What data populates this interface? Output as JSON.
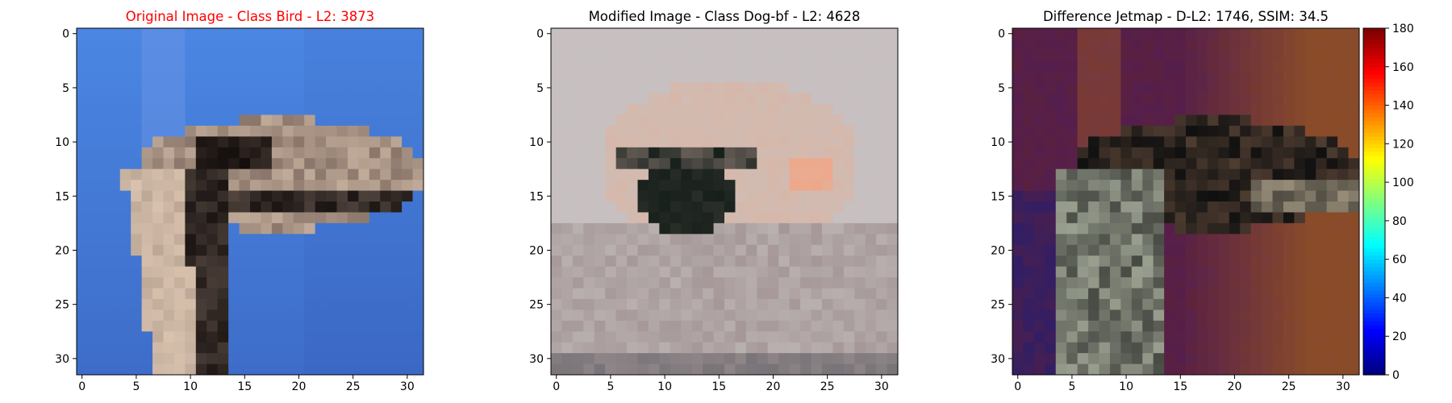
{
  "colors": {
    "original_title": "#ff0000",
    "default_title": "#000000",
    "axis": "#000000"
  },
  "chart_data": [
    {
      "type": "heatmap",
      "title": "Original Image - Class Bird - L2: 3873",
      "title_color": "#ff0000",
      "xlim": [
        -0.5,
        31.5
      ],
      "ylim": [
        31.5,
        -0.5
      ],
      "x_ticks": [
        0,
        5,
        10,
        15,
        20,
        25,
        30
      ],
      "y_ticks": [
        0,
        5,
        10,
        15,
        20,
        25,
        30
      ],
      "grid": false,
      "image_description": "32x32 pixelated photo: ostrich head and neck facing right on a blue background",
      "palette": {
        "background": "#4a86e2",
        "background_dark": "#3a66c2",
        "neck_light": "#d8c2ae",
        "neck_shadow": "#1a1412",
        "head_feathers": "#8a766a",
        "eye": "#140e0c"
      }
    },
    {
      "type": "heatmap",
      "title": "Modified Image - Class Dog-bf - L2: 4628",
      "title_color": "#000000",
      "xlim": [
        -0.5,
        31.5
      ],
      "ylim": [
        31.5,
        -0.5
      ],
      "x_ticks": [
        0,
        5,
        10,
        15,
        20,
        25,
        30
      ],
      "y_ticks": [
        0,
        5,
        10,
        15,
        20,
        25,
        30
      ],
      "grid": false,
      "image_description": "32x32 pixelated adversarial image: muted pinkish-gray face shape with a dark central patch",
      "palette": {
        "background": "#c6c0c0",
        "face": "#d6b8aa",
        "dark_patch": "#18201c",
        "highlight": "#eea88a",
        "lower": "#a69898"
      }
    },
    {
      "type": "heatmap",
      "title": "Difference Jetmap - D-L2: 1746, SSIM: 34.5",
      "title_color": "#000000",
      "xlim": [
        -0.5,
        31.5
      ],
      "ylim": [
        31.5,
        -0.5
      ],
      "x_ticks": [
        0,
        5,
        10,
        15,
        20,
        25,
        30
      ],
      "y_ticks": [
        0,
        5,
        10,
        15,
        20,
        25,
        30
      ],
      "grid": false,
      "image_description": "32x32 jet-colormap difference overlay: ostrich silhouette over purple-to-orange tinted background",
      "palette": {
        "background": "#5a2040",
        "right_orange": "#9a5a20",
        "neck": "#9aa090",
        "dark": "#101010"
      },
      "colorbar": {
        "colormap": "jet",
        "min": 0,
        "max": 180,
        "ticks": [
          0,
          20,
          40,
          60,
          80,
          100,
          120,
          140,
          160,
          180
        ]
      }
    }
  ]
}
